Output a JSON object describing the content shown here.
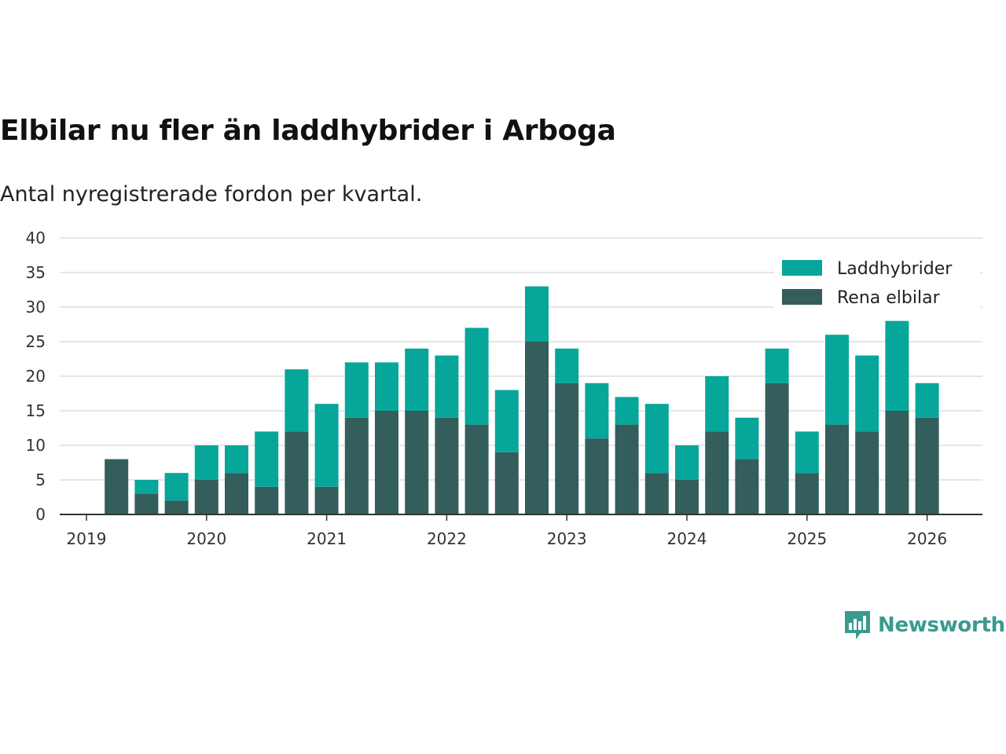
{
  "title": "Elbilar nu fler än laddhybrider i Arboga",
  "subtitle": "Antal nyregistrerade fordon per kvartal.",
  "brand": "Newsworthy",
  "colors": {
    "laddhybrider": "#07a69b",
    "rena_elbilar": "#335e5b",
    "grid": "#dddddd",
    "axis": "#333333",
    "brand": "#3a9a90"
  },
  "chart_data": {
    "type": "bar",
    "stacked": true,
    "title": "Elbilar nu fler än laddhybrider i Arboga",
    "subtitle": "Antal nyregistrerade fordon per kvartal.",
    "xlabel": "",
    "ylabel": "",
    "ylim": [
      0,
      40
    ],
    "yticks": [
      0,
      5,
      10,
      15,
      20,
      25,
      30,
      35,
      40
    ],
    "xticks": [
      "2019",
      "2020",
      "2021",
      "2022",
      "2023",
      "2024",
      "2025",
      "2026"
    ],
    "legend_position": "top-right",
    "categories": [
      "2019 Q2",
      "2019 Q3",
      "2019 Q4",
      "2020 Q1",
      "2020 Q2",
      "2020 Q3",
      "2020 Q4",
      "2021 Q1",
      "2021 Q2",
      "2021 Q3",
      "2021 Q4",
      "2022 Q1",
      "2022 Q2",
      "2022 Q3",
      "2022 Q4",
      "2023 Q1",
      "2023 Q2",
      "2023 Q3",
      "2023 Q4",
      "2024 Q1",
      "2024 Q2",
      "2024 Q3",
      "2024 Q4",
      "2025 Q1",
      "2025 Q2",
      "2025 Q3",
      "2025 Q4",
      "2026 Q1"
    ],
    "series": [
      {
        "name": "Rena elbilar",
        "color": "#335e5b",
        "values": [
          8,
          3,
          2,
          5,
          6,
          4,
          12,
          4,
          14,
          15,
          15,
          14,
          13,
          9,
          25,
          19,
          11,
          13,
          6,
          5,
          12,
          8,
          19,
          6,
          13,
          12,
          15,
          14
        ]
      },
      {
        "name": "Laddhybrider",
        "color": "#07a69b",
        "values": [
          0,
          2,
          4,
          5,
          4,
          8,
          9,
          12,
          8,
          7,
          9,
          9,
          14,
          9,
          8,
          5,
          8,
          4,
          10,
          5,
          8,
          6,
          5,
          6,
          13,
          11,
          13,
          5
        ]
      }
    ],
    "legend": [
      "Laddhybrider",
      "Rena elbilar"
    ]
  }
}
